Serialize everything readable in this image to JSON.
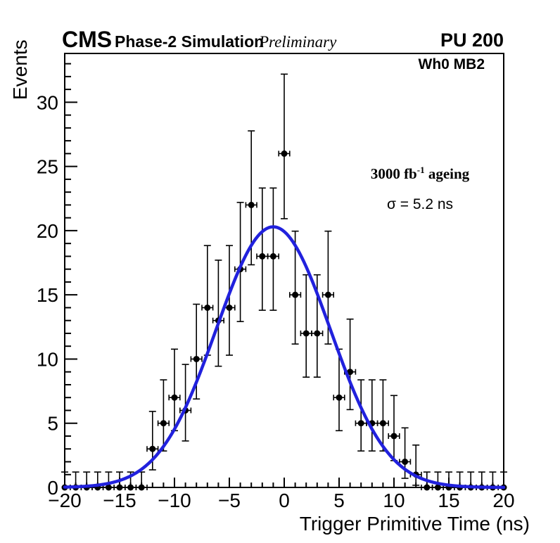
{
  "header": {
    "experiment": "CMS",
    "label": "Phase-2 Simulation",
    "sublabel": "Preliminary",
    "pileup": "PU 200"
  },
  "plot": {
    "chamber": "Wh0 MB2",
    "lumi_prefix": "3000 fb",
    "lumi_sup": "-1",
    "lumi_suffix": " ageing",
    "sigma_text": "σ = 5.2 ns"
  },
  "axes": {
    "x_title": "Trigger Primitive Time (ns)",
    "y_title": "Events",
    "x_min": -20,
    "x_max": 20,
    "y_min": 0,
    "y_max": 33.8,
    "x_major_ticks": [
      -20,
      -15,
      -10,
      -5,
      0,
      5,
      10,
      15,
      20
    ],
    "y_major_ticks": [
      0,
      5,
      10,
      15,
      20,
      25,
      30
    ],
    "x_minor_step": 1,
    "y_minor_step": 1
  },
  "chart_data": {
    "type": "scatter",
    "title": "",
    "xlabel": "Trigger Primitive Time (ns)",
    "ylabel": "Events",
    "xlim": [
      -20,
      20
    ],
    "ylim": [
      0,
      33.8
    ],
    "grid": false,
    "bin_half_width": 0.5,
    "marker_color": "#000000",
    "points_columns": [
      "x",
      "y",
      "err_low",
      "err_up"
    ],
    "points": [
      [
        -20,
        0,
        0,
        1.2
      ],
      [
        -19,
        0,
        0,
        1.2
      ],
      [
        -18,
        0,
        0,
        1.2
      ],
      [
        -17,
        0,
        0,
        1.2
      ],
      [
        -16,
        0,
        0,
        1.2
      ],
      [
        -15,
        0,
        0,
        1.2
      ],
      [
        -14,
        0,
        0,
        1.2
      ],
      [
        -13,
        0,
        0,
        1.2
      ],
      [
        -12,
        3,
        1.63,
        2.92
      ],
      [
        -11,
        5,
        2.16,
        3.38
      ],
      [
        -10,
        7,
        2.58,
        3.77
      ],
      [
        -9,
        6,
        2.38,
        3.58
      ],
      [
        -8,
        10,
        3.11,
        4.27
      ],
      [
        -7,
        14,
        3.7,
        4.84
      ],
      [
        -6,
        13,
        3.56,
        4.7
      ],
      [
        -5,
        14,
        3.7,
        4.84
      ],
      [
        -4,
        17,
        4.08,
        5.2
      ],
      [
        -3,
        22,
        4.66,
        5.77
      ],
      [
        -2,
        18,
        4.2,
        5.32
      ],
      [
        -1,
        18,
        4.2,
        5.32
      ],
      [
        0,
        26,
        5.07,
        6.19
      ],
      [
        1,
        15,
        3.83,
        4.96
      ],
      [
        2,
        12,
        3.41,
        4.56
      ],
      [
        3,
        12,
        3.41,
        4.56
      ],
      [
        4,
        15,
        3.83,
        4.96
      ],
      [
        5,
        7,
        2.58,
        3.77
      ],
      [
        6,
        9,
        2.94,
        4.11
      ],
      [
        7,
        5,
        2.16,
        3.38
      ],
      [
        8,
        5,
        2.16,
        3.38
      ],
      [
        9,
        5,
        2.16,
        3.38
      ],
      [
        10,
        4,
        1.91,
        3.16
      ],
      [
        11,
        2,
        1.29,
        2.64
      ],
      [
        12,
        1,
        0.83,
        2.3
      ],
      [
        13,
        0,
        0,
        1.2
      ],
      [
        14,
        0,
        0,
        1.2
      ],
      [
        15,
        0,
        0,
        1.2
      ],
      [
        16,
        0,
        0,
        1.2
      ],
      [
        17,
        0,
        0,
        1.2
      ],
      [
        18,
        0,
        0,
        1.2
      ],
      [
        19,
        0,
        0,
        1.2
      ],
      [
        20,
        0,
        0,
        1.2
      ]
    ],
    "fit": {
      "shape": "gaussian",
      "amplitude": 20.3,
      "mean": -1.0,
      "sigma": 5.2,
      "color": "#2121dd",
      "line_width": 4.5,
      "label": "σ = 5.2 ns"
    }
  }
}
